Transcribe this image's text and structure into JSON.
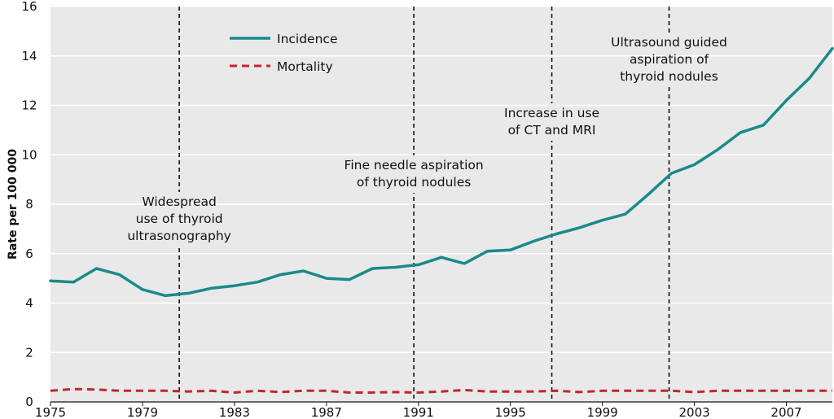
{
  "chart_data": {
    "type": "line",
    "title": "",
    "xlabel": "",
    "ylabel": "Rate per 100 000",
    "xlim": [
      1975,
      2009
    ],
    "ylim": [
      0,
      16
    ],
    "x_ticks": [
      "1975",
      "1979",
      "1983",
      "1987",
      "1991",
      "1995",
      "1999",
      "2003",
      "2007"
    ],
    "y_ticks": [
      "0",
      "2",
      "4",
      "6",
      "8",
      "10",
      "12",
      "14",
      "16"
    ],
    "grid": true,
    "legend_position": "top-left",
    "series": [
      {
        "name": "Incidence",
        "color": "#1a8a8a",
        "style": "solid",
        "x": [
          1975,
          1976,
          1977,
          1978,
          1979,
          1980,
          1981,
          1982,
          1983,
          1984,
          1985,
          1986,
          1987,
          1988,
          1989,
          1990,
          1991,
          1992,
          1993,
          1994,
          1995,
          1996,
          1997,
          1998,
          1999,
          2000,
          2001,
          2002,
          2003,
          2004,
          2005,
          2006,
          2007,
          2008,
          2009
        ],
        "values": [
          4.9,
          4.85,
          5.4,
          5.15,
          4.55,
          4.3,
          4.4,
          4.6,
          4.7,
          4.85,
          5.15,
          5.3,
          5.0,
          4.95,
          5.4,
          5.45,
          5.55,
          5.85,
          5.6,
          6.1,
          6.15,
          6.5,
          6.8,
          7.05,
          7.35,
          7.6,
          8.4,
          9.25,
          9.6,
          10.2,
          10.9,
          11.2,
          12.2,
          13.1,
          14.3
        ]
      },
      {
        "name": "Mortality",
        "color": "#c0272d",
        "style": "dashed",
        "x": [
          1975,
          1976,
          1977,
          1978,
          1979,
          1980,
          1981,
          1982,
          1983,
          1984,
          1985,
          1986,
          1987,
          1988,
          1989,
          1990,
          1991,
          1992,
          1993,
          1994,
          1995,
          1996,
          1997,
          1998,
          1999,
          2000,
          2001,
          2002,
          2003,
          2004,
          2005,
          2006,
          2007,
          2008,
          2009
        ],
        "values": [
          0.45,
          0.52,
          0.5,
          0.45,
          0.45,
          0.45,
          0.42,
          0.45,
          0.38,
          0.45,
          0.4,
          0.45,
          0.45,
          0.38,
          0.38,
          0.4,
          0.38,
          0.42,
          0.48,
          0.42,
          0.42,
          0.42,
          0.45,
          0.4,
          0.45,
          0.45,
          0.45,
          0.45,
          0.4,
          0.45,
          0.45,
          0.45,
          0.45,
          0.45,
          0.45
        ]
      }
    ],
    "annotations": [
      {
        "x": 1980.6,
        "lines": [
          "Widespread",
          "use of thyroid",
          "ultrasonography"
        ]
      },
      {
        "x": 1990.8,
        "lines": [
          "Fine needle aspiration",
          "of thyroid nodules"
        ]
      },
      {
        "x": 1996.8,
        "lines": [
          "Increase in use",
          "of CT and MRI"
        ]
      },
      {
        "x": 2001.9,
        "lines": [
          "Ultrasound guided",
          "aspiration of",
          "thyroid nodules"
        ]
      }
    ]
  }
}
